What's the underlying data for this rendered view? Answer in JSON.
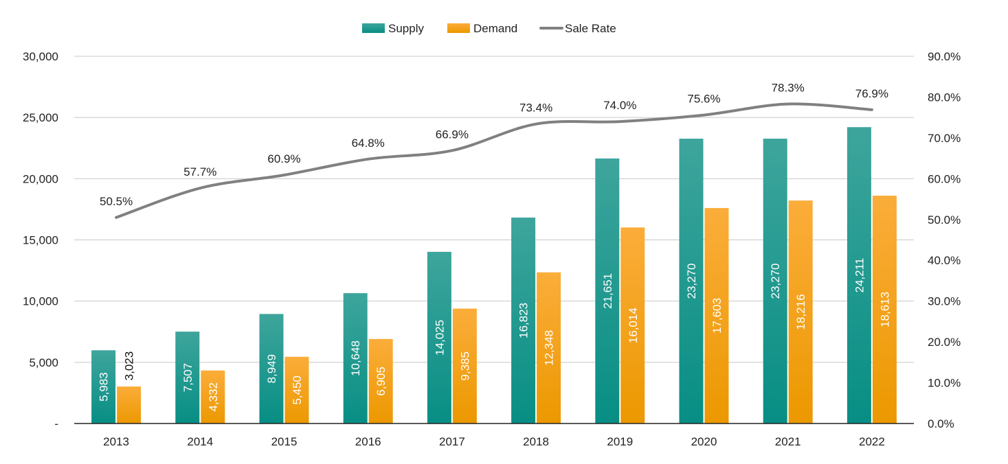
{
  "chart_data": {
    "type": "bar",
    "title": "",
    "categories": [
      "2013",
      "2014",
      "2015",
      "2016",
      "2017",
      "2018",
      "2019",
      "2020",
      "2021",
      "2022"
    ],
    "series": [
      {
        "name": "Supply",
        "type": "bar",
        "axis": "left",
        "color": "#12968c",
        "values": [
          5983,
          7507,
          8949,
          10648,
          14025,
          16823,
          21651,
          23270,
          23270,
          24211
        ],
        "labels": [
          "5,983",
          "7,507",
          "8,949",
          "10,648",
          "14,025",
          "16,823",
          "21,651",
          "23,270",
          "23,270",
          "24,211"
        ]
      },
      {
        "name": "Demand",
        "type": "bar",
        "axis": "left",
        "color": "#f5a21f",
        "values": [
          3023,
          4332,
          5450,
          6905,
          9385,
          12348,
          16014,
          17603,
          18216,
          18613
        ],
        "labels": [
          "3,023",
          "4,332",
          "5,450",
          "6,905",
          "9,385",
          "12,348",
          "16,014",
          "17,603",
          "18,216",
          "18,613"
        ]
      },
      {
        "name": "Sale Rate",
        "type": "line",
        "axis": "right",
        "color": "#808080",
        "values": [
          50.5,
          57.7,
          60.9,
          64.8,
          66.9,
          73.4,
          74.0,
          75.6,
          78.3,
          76.9
        ],
        "labels": [
          "50.5%",
          "57.7%",
          "60.9%",
          "64.8%",
          "66.9%",
          "73.4%",
          "74.0%",
          "75.6%",
          "78.3%",
          "76.9%"
        ]
      }
    ],
    "y_left": {
      "ylim": [
        0,
        30000
      ],
      "ticks": [
        0,
        5000,
        10000,
        15000,
        20000,
        25000,
        30000
      ],
      "tick_labels": [
        "-",
        "5,000",
        "10,000",
        "15,000",
        "20,000",
        "25,000",
        "30,000"
      ]
    },
    "y_right": {
      "ylim": [
        0,
        90
      ],
      "ticks": [
        0,
        10,
        20,
        30,
        40,
        50,
        60,
        70,
        80,
        90
      ],
      "tick_labels": [
        "0.0%",
        "10.0%",
        "20.0%",
        "30.0%",
        "40.0%",
        "50.0%",
        "60.0%",
        "70.0%",
        "80.0%",
        "90.0%"
      ]
    },
    "xlabel": "",
    "ylabel": "",
    "grid": true,
    "legend": {
      "position": "top-center",
      "entries": [
        "Supply",
        "Demand",
        "Sale Rate"
      ]
    }
  }
}
